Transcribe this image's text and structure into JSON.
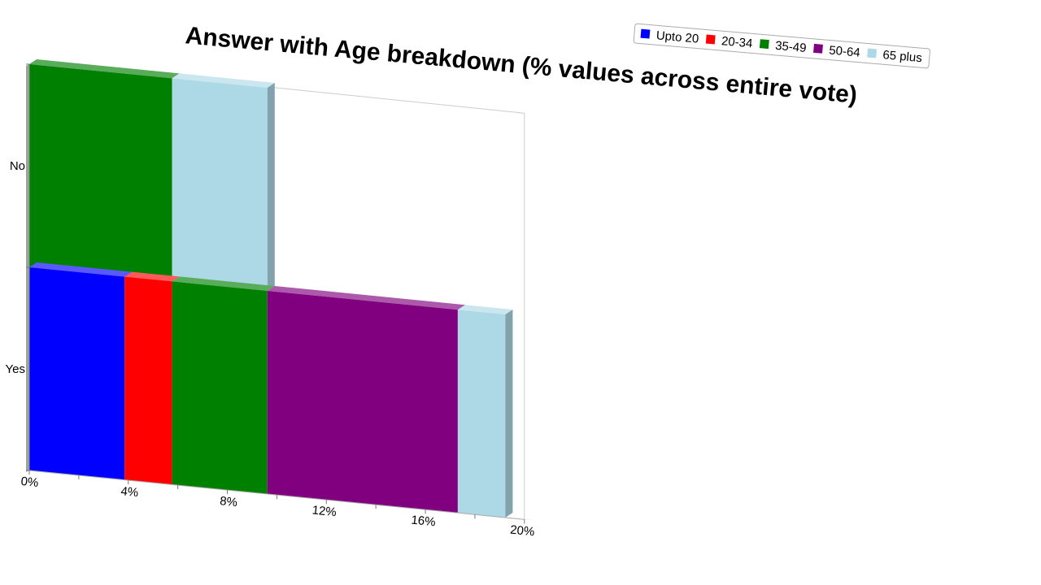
{
  "chart_data": {
    "type": "bar",
    "orientation": "horizontal",
    "stacked": true,
    "three_d": true,
    "title": "Answer with Age breakdown (% values across entire vote)",
    "categories": [
      "No",
      "Yes"
    ],
    "series": [
      {
        "name": "Upto 20",
        "color": "#0000ff",
        "values": [
          0,
          3.85
        ]
      },
      {
        "name": "20-34",
        "color": "#ff0000",
        "values": [
          0,
          1.92
        ]
      },
      {
        "name": "35-49",
        "color": "#008000",
        "values": [
          5.77,
          3.85
        ]
      },
      {
        "name": "50-64",
        "color": "#800080",
        "values": [
          0,
          7.69
        ]
      },
      {
        "name": "65 plus",
        "color": "#add8e6",
        "values": [
          3.85,
          1.92
        ]
      }
    ],
    "xaxis": {
      "min": 0,
      "max": 20,
      "major_step": 4,
      "minor_step": 2,
      "tick_labels": [
        "0%",
        "4%",
        "8%",
        "12%",
        "16%",
        "20%"
      ]
    },
    "legend_position": "top-right",
    "grid": false
  }
}
